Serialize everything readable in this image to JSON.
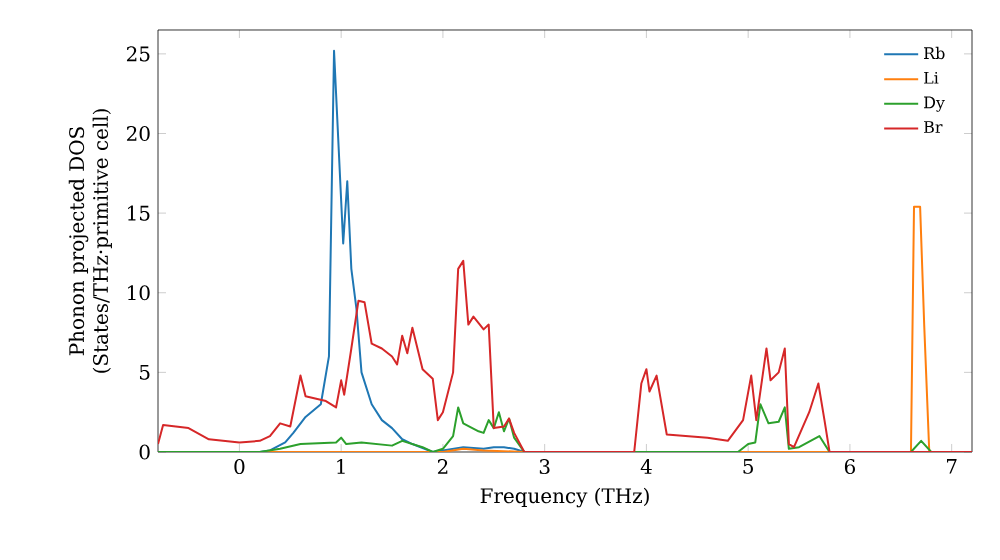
{
  "chart_data": {
    "type": "line",
    "xlabel": "Frequency (THz)",
    "ylabel": "Phonon projected DOS\n(States/THz·primitive cell)",
    "xlim": [
      -0.8,
      7.2
    ],
    "ylim": [
      0,
      26.5
    ],
    "xticks": [
      0,
      1,
      2,
      3,
      4,
      5,
      6,
      7
    ],
    "yticks": [
      0,
      5,
      10,
      15,
      20,
      25
    ],
    "grid": false,
    "legend": "top right",
    "line_style": "solid",
    "marker": "none",
    "series": [
      {
        "name": "Rb",
        "color": "#1f77b4",
        "x": [
          -0.8,
          0.2,
          0.3,
          0.45,
          0.53,
          0.65,
          0.8,
          0.88,
          0.93,
          1.02,
          1.06,
          1.1,
          1.15,
          1.2,
          1.3,
          1.4,
          1.5,
          1.6,
          1.7,
          1.9,
          2.0,
          2.2,
          2.4,
          2.5,
          2.6,
          2.7,
          2.8,
          7.2
        ],
        "values": [
          0,
          0,
          0.1,
          0.6,
          1.2,
          2.2,
          3.0,
          6.0,
          25.2,
          13.1,
          17.0,
          11.5,
          9.0,
          5.0,
          3.0,
          2.0,
          1.5,
          0.8,
          0.5,
          0,
          0.1,
          0.3,
          0.2,
          0.3,
          0.3,
          0.2,
          0,
          0
        ]
      },
      {
        "name": "Li",
        "color": "#ff7f0e",
        "x": [
          -0.8,
          2.0,
          2.2,
          2.4,
          2.8,
          6.55,
          6.6,
          6.63,
          6.69,
          6.73,
          6.78,
          7.2
        ],
        "values": [
          0,
          0,
          0.2,
          0.1,
          0,
          0,
          0,
          15.4,
          15.4,
          8.0,
          0,
          0
        ]
      },
      {
        "name": "Dy",
        "color": "#2ca02c",
        "x": [
          -0.8,
          0.2,
          0.4,
          0.6,
          0.95,
          1.0,
          1.05,
          1.2,
          1.5,
          1.6,
          1.8,
          1.9,
          2.0,
          2.1,
          2.15,
          2.2,
          2.35,
          2.4,
          2.45,
          2.5,
          2.55,
          2.6,
          2.65,
          2.7,
          2.8,
          4.9,
          5.0,
          5.07,
          5.12,
          5.2,
          5.3,
          5.36,
          5.4,
          5.5,
          5.7,
          5.8,
          6.6,
          6.7,
          6.8,
          7.2
        ],
        "values": [
          0,
          0,
          0.2,
          0.5,
          0.6,
          0.9,
          0.5,
          0.6,
          0.4,
          0.7,
          0.3,
          0,
          0.2,
          1.0,
          2.8,
          1.8,
          1.3,
          1.2,
          2.0,
          1.5,
          2.5,
          1.3,
          2.1,
          0.9,
          0,
          0,
          0.5,
          0.6,
          3.0,
          1.8,
          1.9,
          2.8,
          0.2,
          0.3,
          1.0,
          0,
          0,
          0.7,
          0,
          0
        ]
      },
      {
        "name": "Br",
        "color": "#d62728",
        "x": [
          -0.8,
          -0.75,
          -0.5,
          -0.3,
          0,
          0.2,
          0.3,
          0.4,
          0.5,
          0.6,
          0.65,
          0.85,
          0.95,
          1.0,
          1.03,
          1.1,
          1.17,
          1.23,
          1.3,
          1.4,
          1.5,
          1.55,
          1.6,
          1.65,
          1.7,
          1.8,
          1.9,
          1.95,
          2.0,
          2.1,
          2.15,
          2.2,
          2.25,
          2.3,
          2.4,
          2.45,
          2.5,
          2.6,
          2.65,
          2.7,
          2.8,
          3.88,
          3.95,
          4.0,
          4.03,
          4.1,
          4.2,
          4.6,
          4.8,
          4.95,
          5.03,
          5.08,
          5.18,
          5.22,
          5.3,
          5.36,
          5.4,
          5.45,
          5.6,
          5.69,
          5.75,
          5.8,
          7.2
        ],
        "values": [
          0.5,
          1.7,
          1.5,
          0.8,
          0.6,
          0.7,
          1.0,
          1.8,
          1.6,
          4.8,
          3.5,
          3.2,
          2.8,
          4.5,
          3.6,
          6.5,
          9.5,
          9.4,
          6.8,
          6.5,
          6.0,
          5.5,
          7.3,
          6.2,
          7.8,
          5.2,
          4.6,
          2.0,
          2.5,
          5.0,
          11.5,
          12.0,
          8.0,
          8.5,
          7.7,
          8.0,
          1.5,
          1.6,
          2.1,
          1.2,
          0,
          0,
          4.3,
          5.2,
          3.8,
          4.8,
          1.1,
          0.9,
          0.7,
          2.0,
          4.8,
          2.0,
          6.5,
          4.5,
          5.0,
          6.5,
          0.5,
          0.3,
          2.5,
          4.3,
          2.0,
          0,
          0
        ]
      }
    ]
  }
}
